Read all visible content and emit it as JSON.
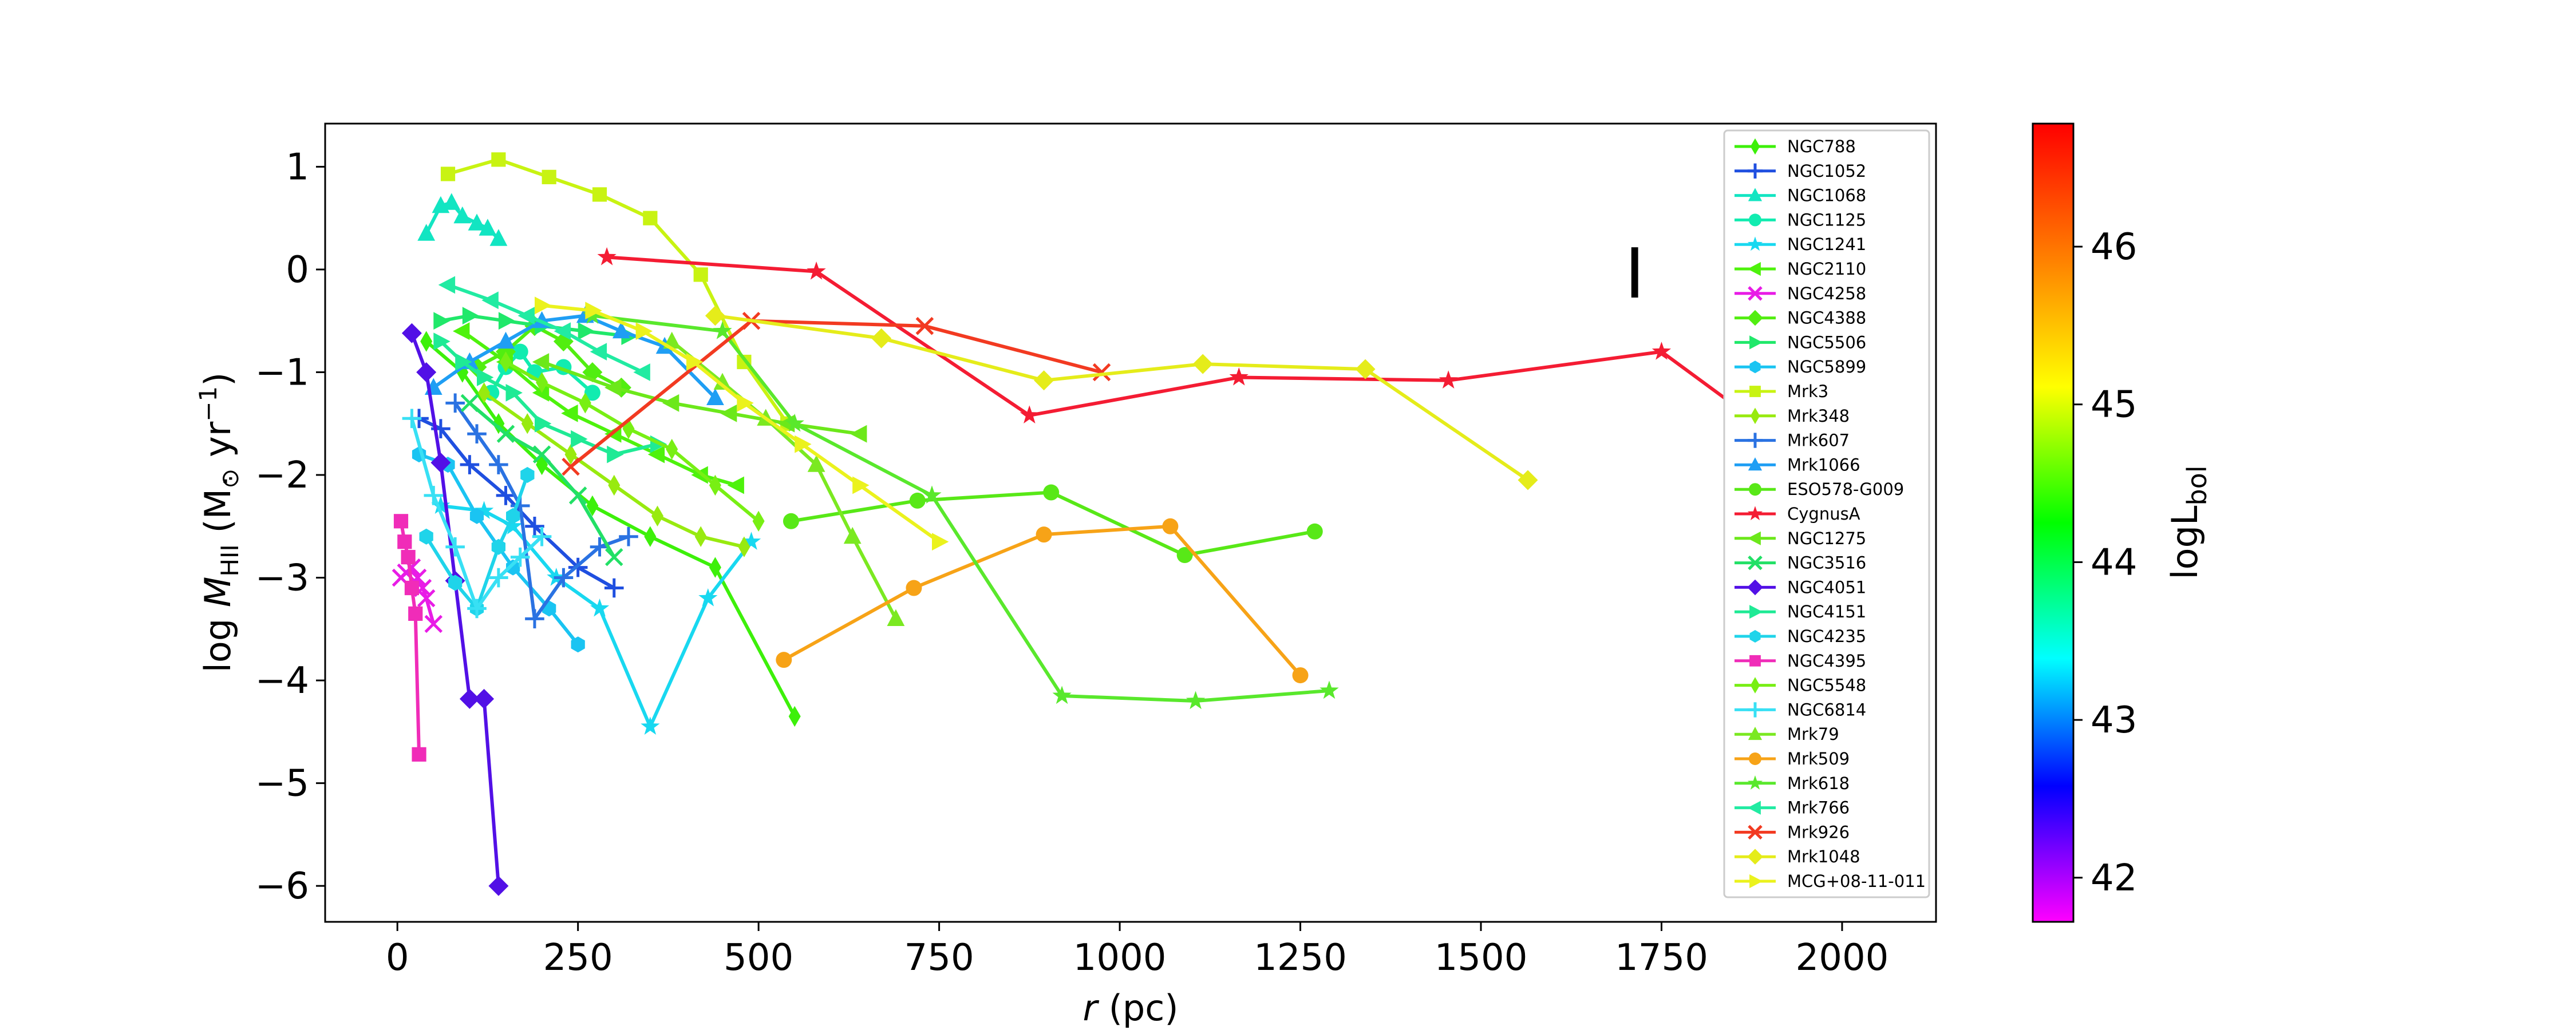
{
  "chart_data": {
    "type": "line",
    "panel_label": "I",
    "xlabel_var": "r",
    "xlabel_unit": "(pc)",
    "ylabel_prefix": "log ",
    "ylabel_M": "M",
    "ylabel_sub": "HII",
    "ylabel_unit_open": " (M",
    "ylabel_sun": "⊙",
    "ylabel_unit_mid": " yr",
    "ylabel_exp": "−1",
    "ylabel_unit_close": ")",
    "colorbar_label_main": "logL",
    "colorbar_label_sub": "bol",
    "xlim": [
      -100,
      2130
    ],
    "ylim": [
      -6.35,
      1.42
    ],
    "xticks": [
      0,
      250,
      500,
      750,
      1000,
      1250,
      1500,
      1750,
      2000
    ],
    "yticks": [
      1,
      0,
      -1,
      -2,
      -3,
      -4,
      -5,
      -6
    ],
    "ytick_labels": [
      "1",
      "0",
      "−1",
      "−2",
      "−3",
      "−4",
      "−5",
      "−6"
    ],
    "colorbar": {
      "min": 41.72,
      "max": 46.78,
      "ticks": [
        42,
        43,
        44,
        45,
        46
      ]
    },
    "legend_position": "upper-right",
    "series": [
      {
        "name": "NGC788",
        "marker": "thin_diamond",
        "color": "#3df00a",
        "x": [
          40,
          90,
          140,
          200,
          270,
          350,
          440,
          550
        ],
        "y": [
          -0.7,
          -1.0,
          -1.5,
          -1.9,
          -2.3,
          -2.6,
          -2.9,
          -4.35
        ]
      },
      {
        "name": "NGC1052",
        "marker": "plus",
        "color": "#1f4fe0",
        "x": [
          30,
          60,
          100,
          150,
          190,
          250,
          300
        ],
        "y": [
          -1.45,
          -1.55,
          -1.9,
          -2.2,
          -2.5,
          -2.9,
          -3.1
        ]
      },
      {
        "name": "NGC1068",
        "marker": "triangle_up",
        "color": "#12e5c2",
        "x": [
          40,
          60,
          75,
          90,
          110,
          125,
          140
        ],
        "y": [
          0.35,
          0.62,
          0.65,
          0.52,
          0.45,
          0.4,
          0.3
        ]
      },
      {
        "name": "NGC1125",
        "marker": "circle",
        "color": "#11ecb0",
        "x": [
          130,
          150,
          170,
          190,
          230,
          270
        ],
        "y": [
          -1.2,
          -0.95,
          -0.8,
          -1.0,
          -0.95,
          -1.2
        ]
      },
      {
        "name": "NGC1241",
        "marker": "star",
        "color": "#18d8f0",
        "x": [
          60,
          120,
          160,
          220,
          280,
          350,
          430,
          490
        ],
        "y": [
          -2.3,
          -2.35,
          -2.5,
          -3.0,
          -3.3,
          -4.45,
          -3.2,
          -2.65
        ]
      },
      {
        "name": "NGC2110",
        "marker": "triangle_left",
        "color": "#4ef20c",
        "x": [
          90,
          150,
          200,
          240,
          300,
          360,
          420,
          470
        ],
        "y": [
          -0.6,
          -0.9,
          -1.2,
          -1.4,
          -1.6,
          -1.8,
          -2.0,
          -2.1
        ]
      },
      {
        "name": "NGC4258",
        "marker": "x",
        "color": "#e81ce6",
        "x": [
          5,
          12,
          20,
          28,
          35,
          40,
          50
        ],
        "y": [
          -3.0,
          -2.95,
          -2.9,
          -3.0,
          -3.1,
          -3.2,
          -3.45
        ]
      },
      {
        "name": "NGC4388",
        "marker": "diamond",
        "color": "#52ee10",
        "x": [
          110,
          150,
          190,
          230,
          270,
          310
        ],
        "y": [
          -0.95,
          -0.8,
          -0.55,
          -0.7,
          -1.0,
          -1.15
        ]
      },
      {
        "name": "NGC5506",
        "marker": "triangle_right",
        "color": "#20e86a",
        "x": [
          60,
          100,
          150,
          200,
          260,
          320
        ],
        "y": [
          -0.5,
          -0.45,
          -0.5,
          -0.55,
          -0.6,
          -0.65
        ]
      },
      {
        "name": "NGC5899",
        "marker": "hexagon",
        "color": "#1ac4f2",
        "x": [
          30,
          70,
          110,
          160,
          210,
          250
        ],
        "y": [
          -1.8,
          -1.9,
          -2.4,
          -2.9,
          -3.3,
          -3.65
        ]
      },
      {
        "name": "Mrk3",
        "marker": "square",
        "color": "#c8f312",
        "x": [
          70,
          140,
          210,
          280,
          350,
          420,
          480,
          540
        ],
        "y": [
          0.93,
          1.07,
          0.9,
          0.73,
          0.5,
          -0.05,
          -0.9,
          -1.5
        ]
      },
      {
        "name": "Mrk348",
        "marker": "thin_diamond",
        "color": "#98ea0f",
        "x": [
          120,
          180,
          240,
          300,
          360,
          420,
          480
        ],
        "y": [
          -1.2,
          -1.5,
          -1.8,
          -2.1,
          -2.4,
          -2.6,
          -2.7
        ]
      },
      {
        "name": "Mrk607",
        "marker": "plus",
        "color": "#2a72e2",
        "x": [
          80,
          110,
          140,
          170,
          190,
          230,
          280,
          320
        ],
        "y": [
          -1.3,
          -1.6,
          -1.9,
          -2.3,
          -3.4,
          -3.0,
          -2.7,
          -2.6
        ]
      },
      {
        "name": "Mrk1066",
        "marker": "triangle_up",
        "color": "#1f9ef4",
        "x": [
          50,
          100,
          150,
          200,
          260,
          310,
          370,
          440
        ],
        "y": [
          -1.15,
          -0.9,
          -0.7,
          -0.5,
          -0.45,
          -0.6,
          -0.75,
          -1.25
        ]
      },
      {
        "name": "ESO578-G009",
        "marker": "circle",
        "color": "#58e817",
        "x": [
          545,
          720,
          905,
          1090,
          1270
        ],
        "y": [
          -2.45,
          -2.25,
          -2.17,
          -2.78,
          -2.55
        ]
      },
      {
        "name": "CygnusA",
        "marker": "star",
        "color": "#f41c33",
        "x": [
          290,
          580,
          875,
          1165,
          1455,
          1750,
          2050
        ],
        "y": [
          0.12,
          -0.02,
          -1.42,
          -1.05,
          -1.08,
          -0.8,
          -2.35
        ]
      },
      {
        "name": "NGC1275",
        "marker": "triangle_left",
        "color": "#6ce81a",
        "x": [
          200,
          300,
          380,
          460,
          540,
          640
        ],
        "y": [
          -0.9,
          -1.15,
          -1.3,
          -1.4,
          -1.5,
          -1.6
        ]
      },
      {
        "name": "NGC3516",
        "marker": "x",
        "color": "#22e066",
        "x": [
          100,
          150,
          200,
          250,
          300
        ],
        "y": [
          -1.3,
          -1.6,
          -1.8,
          -2.2,
          -2.8
        ]
      },
      {
        "name": "NGC4051",
        "marker": "diamond",
        "color": "#5210e6",
        "x": [
          20,
          40,
          60,
          80,
          100,
          120,
          140
        ],
        "y": [
          -0.62,
          -1.0,
          -1.88,
          -3.03,
          -4.18,
          -4.18,
          -6.0
        ]
      },
      {
        "name": "NGC4151",
        "marker": "triangle_right",
        "color": "#1fea95",
        "x": [
          60,
          90,
          120,
          160,
          200,
          250,
          300,
          360
        ],
        "y": [
          -0.7,
          -0.9,
          -1.05,
          -1.2,
          -1.5,
          -1.65,
          -1.8,
          -1.7
        ]
      },
      {
        "name": "NGC4235",
        "marker": "hexagon",
        "color": "#1fd4ea",
        "x": [
          40,
          80,
          110,
          140,
          160,
          180
        ],
        "y": [
          -2.6,
          -3.05,
          -3.3,
          -2.7,
          -2.4,
          -2.0
        ]
      },
      {
        "name": "NGC4395",
        "marker": "square",
        "color": "#f02cb8",
        "x": [
          5,
          10,
          15,
          20,
          25,
          30
        ],
        "y": [
          -2.45,
          -2.65,
          -2.8,
          -3.1,
          -3.35,
          -4.72
        ]
      },
      {
        "name": "NGC5548",
        "marker": "thin_diamond",
        "color": "#78ef14",
        "x": [
          150,
          200,
          260,
          320,
          380,
          440,
          500
        ],
        "y": [
          -0.9,
          -1.1,
          -1.3,
          -1.55,
          -1.75,
          -2.1,
          -2.45
        ]
      },
      {
        "name": "NGC6814",
        "marker": "plus",
        "color": "#38e0f4",
        "x": [
          20,
          50,
          80,
          110,
          140,
          170,
          200
        ],
        "y": [
          -1.45,
          -2.2,
          -2.7,
          -3.3,
          -3.0,
          -2.8,
          -2.6
        ]
      },
      {
        "name": "Mrk79",
        "marker": "triangle_up",
        "color": "#7be921",
        "x": [
          380,
          450,
          510,
          580,
          630,
          690
        ],
        "y": [
          -0.7,
          -1.1,
          -1.45,
          -1.9,
          -2.6,
          -3.4
        ]
      },
      {
        "name": "Mrk509",
        "marker": "circle",
        "color": "#f7a317",
        "x": [
          535,
          715,
          895,
          1070,
          1250
        ],
        "y": [
          -3.8,
          -3.1,
          -2.58,
          -2.5,
          -3.95
        ]
      },
      {
        "name": "Mrk618",
        "marker": "star",
        "color": "#59e82c",
        "x": [
          270,
          450,
          550,
          740,
          920,
          1105,
          1290
        ],
        "y": [
          -0.45,
          -0.6,
          -1.5,
          -2.2,
          -4.15,
          -4.2,
          -4.1
        ]
      },
      {
        "name": "Mrk766",
        "marker": "triangle_left",
        "color": "#21eba2",
        "x": [
          70,
          130,
          180,
          230,
          280,
          340
        ],
        "y": [
          -0.15,
          -0.3,
          -0.45,
          -0.6,
          -0.8,
          -1.0
        ]
      },
      {
        "name": "Mrk926",
        "marker": "x",
        "color": "#f23a21",
        "x": [
          240,
          490,
          730,
          975
        ],
        "y": [
          -1.92,
          -0.5,
          -0.55,
          -1.0
        ]
      },
      {
        "name": "Mrk1048",
        "marker": "diamond",
        "color": "#e5ec1a",
        "x": [
          440,
          670,
          895,
          1115,
          1340,
          1565
        ],
        "y": [
          -0.45,
          -0.67,
          -1.08,
          -0.92,
          -0.97,
          -2.05
        ]
      },
      {
        "name": "MCG+08-11-011",
        "marker": "triangle_right",
        "color": "#ebf21d",
        "x": [
          200,
          270,
          340,
          410,
          480,
          560,
          640,
          750
        ],
        "y": [
          -0.35,
          -0.4,
          -0.6,
          -0.9,
          -1.3,
          -1.7,
          -2.1,
          -2.65
        ]
      }
    ]
  }
}
